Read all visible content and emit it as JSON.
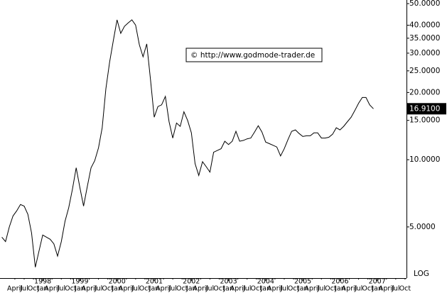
{
  "chart_data": {
    "type": "line",
    "annotation": "© http://www.godmode-trader.de",
    "scale_label": "LOG",
    "log_scale": true,
    "last_value_label": "16.9100",
    "xlim": [
      1996.85,
      2007.79
    ],
    "ylim": [
      2.95,
      51.9
    ],
    "xticks": [
      1998,
      1999,
      2000,
      2001,
      2002,
      2003,
      2004,
      2005,
      2006,
      2007
    ],
    "month_ticks": [
      {
        "value": 1997.25,
        "label": "April"
      },
      {
        "value": 1997.5,
        "label": "Jul"
      },
      {
        "value": 1997.75,
        "label": "Oct"
      },
      {
        "value": 1998.0,
        "label": "Jan"
      },
      {
        "value": 1998.25,
        "label": "April"
      },
      {
        "value": 1998.5,
        "label": "Jul"
      },
      {
        "value": 1998.75,
        "label": "Oct"
      },
      {
        "value": 1999.0,
        "label": "Jan"
      },
      {
        "value": 1999.25,
        "label": "April"
      },
      {
        "value": 1999.5,
        "label": "Jul"
      },
      {
        "value": 1999.75,
        "label": "Oct"
      },
      {
        "value": 2000.0,
        "label": "Jan"
      },
      {
        "value": 2000.25,
        "label": "April"
      },
      {
        "value": 2000.5,
        "label": "Jul"
      },
      {
        "value": 2000.75,
        "label": "Oct"
      },
      {
        "value": 2001.0,
        "label": "Jan"
      },
      {
        "value": 2001.25,
        "label": "April"
      },
      {
        "value": 2001.5,
        "label": "Jul"
      },
      {
        "value": 2001.75,
        "label": "Oct"
      },
      {
        "value": 2002.0,
        "label": "Jan"
      },
      {
        "value": 2002.25,
        "label": "April"
      },
      {
        "value": 2002.5,
        "label": "Jul"
      },
      {
        "value": 2002.75,
        "label": "Oct"
      },
      {
        "value": 2003.0,
        "label": "Jan"
      },
      {
        "value": 2003.25,
        "label": "April"
      },
      {
        "value": 2003.5,
        "label": "Jul"
      },
      {
        "value": 2003.75,
        "label": "Oct"
      },
      {
        "value": 2004.0,
        "label": "Jan"
      },
      {
        "value": 2004.25,
        "label": "April"
      },
      {
        "value": 2004.5,
        "label": "Jul"
      },
      {
        "value": 2004.75,
        "label": "Oct"
      },
      {
        "value": 2005.0,
        "label": "Jan"
      },
      {
        "value": 2005.25,
        "label": "April"
      },
      {
        "value": 2005.5,
        "label": "Jul"
      },
      {
        "value": 2005.75,
        "label": "Oct"
      },
      {
        "value": 2006.0,
        "label": "Jan"
      },
      {
        "value": 2006.25,
        "label": "April"
      },
      {
        "value": 2006.5,
        "label": "Jul"
      },
      {
        "value": 2006.75,
        "label": "Oct"
      },
      {
        "value": 2007.0,
        "label": "Jan"
      },
      {
        "value": 2007.25,
        "label": "April"
      },
      {
        "value": 2007.5,
        "label": "Jul"
      },
      {
        "value": 2007.75,
        "label": "Oct"
      }
    ],
    "yticks": [
      {
        "value": 50,
        "label": "50.0000"
      },
      {
        "value": 40,
        "label": "40.0000"
      },
      {
        "value": 35,
        "label": "35.0000"
      },
      {
        "value": 30,
        "label": "30.0000"
      },
      {
        "value": 25,
        "label": "25.0000"
      },
      {
        "value": 20,
        "label": "20.0000"
      },
      {
        "value": 15,
        "label": "15.0000"
      },
      {
        "value": 10,
        "label": "10.0000"
      },
      {
        "value": 5,
        "label": "5.0000"
      }
    ],
    "color": "#000000",
    "x": [
      1996.9,
      1997.0,
      1997.1,
      1997.2,
      1997.3,
      1997.4,
      1997.5,
      1997.6,
      1997.7,
      1997.8,
      1997.9,
      1998.0,
      1998.1,
      1998.2,
      1998.3,
      1998.4,
      1998.5,
      1998.6,
      1998.7,
      1998.8,
      1998.9,
      1999.0,
      1999.1,
      1999.2,
      1999.3,
      1999.4,
      1999.5,
      1999.6,
      1999.7,
      1999.8,
      1999.9,
      2000.0,
      2000.1,
      2000.2,
      2000.3,
      2000.4,
      2000.5,
      2000.6,
      2000.7,
      2000.8,
      2000.9,
      2001.0,
      2001.1,
      2001.2,
      2001.3,
      2001.4,
      2001.5,
      2001.6,
      2001.7,
      2001.8,
      2001.9,
      2002.0,
      2002.1,
      2002.2,
      2002.3,
      2002.4,
      2002.5,
      2002.6,
      2002.7,
      2002.8,
      2002.9,
      2003.0,
      2003.1,
      2003.2,
      2003.3,
      2003.4,
      2003.5,
      2003.6,
      2003.7,
      2003.8,
      2003.9,
      2004.0,
      2004.1,
      2004.2,
      2004.3,
      2004.4,
      2004.5,
      2004.6,
      2004.7,
      2004.8,
      2004.9,
      2005.0,
      2005.1,
      2005.2,
      2005.3,
      2005.4,
      2005.5,
      2005.6,
      2005.7,
      2005.8,
      2005.9,
      2006.0,
      2006.1,
      2006.2,
      2006.3,
      2006.4,
      2006.5,
      2006.6,
      2006.7,
      2006.8,
      2006.9
    ],
    "values": [
      4.5,
      4.3,
      5.0,
      5.6,
      5.9,
      6.3,
      6.2,
      5.7,
      4.7,
      3.3,
      3.9,
      4.6,
      4.5,
      4.4,
      4.2,
      3.7,
      4.3,
      5.3,
      6.1,
      7.4,
      9.2,
      7.5,
      6.2,
      7.6,
      9.2,
      9.9,
      11.3,
      13.9,
      20.8,
      27.3,
      34.2,
      42.3,
      36.8,
      39.6,
      41.0,
      42.3,
      40.1,
      32.7,
      28.9,
      33.0,
      22.8,
      15.5,
      17.3,
      17.6,
      19.2,
      14.8,
      12.5,
      14.6,
      14.1,
      16.4,
      15.0,
      13.2,
      9.6,
      8.5,
      9.8,
      9.3,
      8.8,
      10.8,
      11.0,
      11.2,
      12.1,
      11.7,
      12.1,
      13.4,
      12.1,
      12.2,
      12.4,
      12.5,
      13.3,
      14.2,
      13.3,
      12.0,
      11.8,
      11.6,
      11.4,
      10.4,
      11.2,
      12.3,
      13.4,
      13.6,
      13.1,
      12.7,
      12.8,
      12.8,
      13.2,
      13.2,
      12.5,
      12.5,
      12.6,
      13.0,
      13.9,
      13.6,
      14.1,
      14.8,
      15.5,
      16.6,
      17.9,
      19.0,
      19.0,
      17.6,
      16.91
    ]
  }
}
